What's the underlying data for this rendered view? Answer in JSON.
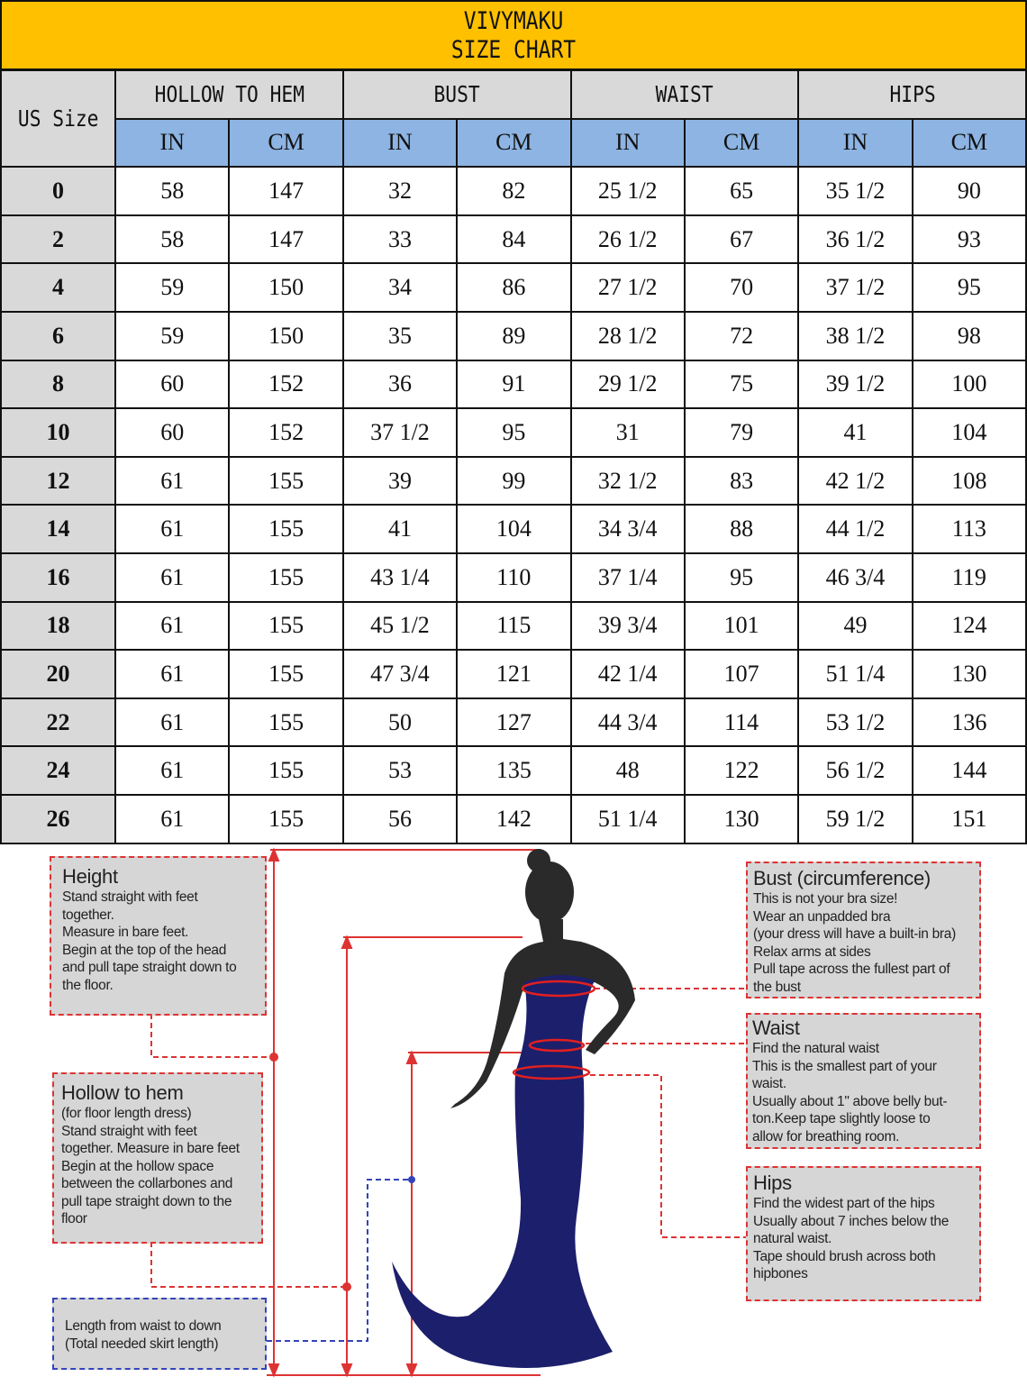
{
  "title": {
    "brand": "VIVYMAKU",
    "subtitle": "SIZE CHART"
  },
  "colors": {
    "title_bg": "#FFC000",
    "header_bg": "#D9D9D9",
    "unit_bg": "#8DB4E2",
    "dress": "#1c1f6b",
    "guide": "#D33333",
    "guide_blue": "#3344BB"
  },
  "table": {
    "size_header": "US Size",
    "groups": [
      "HOLLOW TO HEM",
      "BUST",
      "WAIST",
      "HIPS"
    ],
    "units": [
      "IN",
      "CM",
      "IN",
      "CM",
      "IN",
      "CM",
      "IN",
      "CM"
    ],
    "rows": [
      [
        "0",
        "58",
        "147",
        "32",
        "82",
        "25 1/2",
        "65",
        "35 1/2",
        "90"
      ],
      [
        "2",
        "58",
        "147",
        "33",
        "84",
        "26 1/2",
        "67",
        "36 1/2",
        "93"
      ],
      [
        "4",
        "59",
        "150",
        "34",
        "86",
        "27 1/2",
        "70",
        "37 1/2",
        "95"
      ],
      [
        "6",
        "59",
        "150",
        "35",
        "89",
        "28 1/2",
        "72",
        "38 1/2",
        "98"
      ],
      [
        "8",
        "60",
        "152",
        "36",
        "91",
        "29 1/2",
        "75",
        "39 1/2",
        "100"
      ],
      [
        "10",
        "60",
        "152",
        "37 1/2",
        "95",
        "31",
        "79",
        "41",
        "104"
      ],
      [
        "12",
        "61",
        "155",
        "39",
        "99",
        "32 1/2",
        "83",
        "42 1/2",
        "108"
      ],
      [
        "14",
        "61",
        "155",
        "41",
        "104",
        "34 3/4",
        "88",
        "44 1/2",
        "113"
      ],
      [
        "16",
        "61",
        "155",
        "43 1/4",
        "110",
        "37 1/4",
        "95",
        "46 3/4",
        "119"
      ],
      [
        "18",
        "61",
        "155",
        "45 1/2",
        "115",
        "39 3/4",
        "101",
        "49",
        "124"
      ],
      [
        "20",
        "61",
        "155",
        "47 3/4",
        "121",
        "42 1/4",
        "107",
        "51 1/4",
        "130"
      ],
      [
        "22",
        "61",
        "155",
        "50",
        "127",
        "44 3/4",
        "114",
        "53 1/2",
        "136"
      ],
      [
        "24",
        "61",
        "155",
        "53",
        "135",
        "48",
        "122",
        "56 1/2",
        "144"
      ],
      [
        "26",
        "61",
        "155",
        "56",
        "142",
        "51 1/4",
        "130",
        "59 1/2",
        "151"
      ]
    ]
  },
  "guides": {
    "height": {
      "title": "Height",
      "lines": [
        "Stand straight with feet",
        "together.",
        "Measure in bare feet.",
        "Begin at the top of the head",
        "and pull tape straight down to",
        "the floor."
      ]
    },
    "hollow": {
      "title": "Hollow to hem",
      "lines": [
        "(for floor length dress)",
        "Stand straight with feet",
        "together. Measure in bare feet",
        "Begin at the hollow space",
        "between the collarbones and",
        "pull tape straight down to the",
        "floor"
      ]
    },
    "skirt": {
      "lines": [
        "Length from waist to down",
        "(Total needed skirt length)"
      ]
    },
    "bust": {
      "title": "Bust (circumference)",
      "lines": [
        "This is not your bra size!",
        "Wear an unpadded bra",
        "(your dress will have a built-in bra)",
        "Relax arms at sides",
        "Pull tape across the fullest part of",
        "the bust"
      ]
    },
    "waist": {
      "title": "Waist",
      "lines": [
        "Find the natural waist",
        "This is the smallest part of your",
        "waist.",
        "Usually about 1\" above belly but-",
        "ton.Keep tape slightly loose to",
        "allow for breathing room."
      ]
    },
    "hips": {
      "title": "Hips",
      "lines": [
        "Find the widest part of the hips",
        "Usually about 7 inches below the",
        "natural waist.",
        "Tape should brush across both",
        "hipbones"
      ]
    }
  }
}
